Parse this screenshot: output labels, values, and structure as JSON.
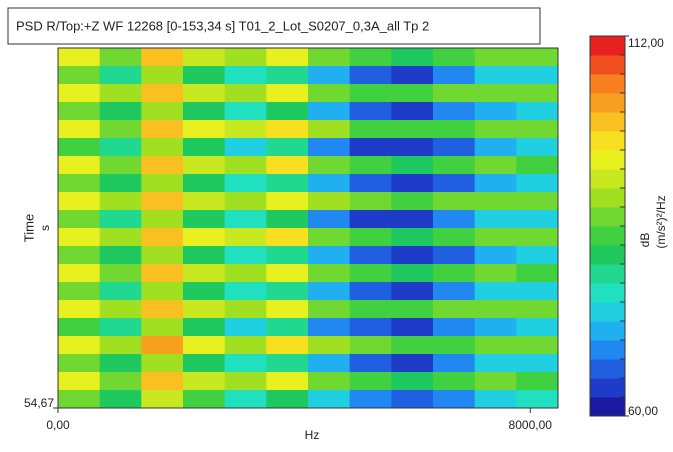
{
  "chart_data": {
    "type": "heatmap",
    "title": "PSD R/Top:+Z WF 12268 [0-153,34 s]  T01_2_Lot_S0207_0,3A_all Tp 2",
    "x_label": "Hz",
    "y_label": "Time",
    "y_unit": "s",
    "colorbar_label": "dB",
    "colorbar_unit": "(m/s²)²/Hz",
    "xlim": [
      0,
      8470
    ],
    "ylim": [
      54.67,
      153.34
    ],
    "xticks": [
      {
        "value": 0,
        "label": "0,00"
      },
      {
        "value": 8000,
        "label": "8000,00"
      }
    ],
    "yticks": [
      {
        "value": 54.67,
        "label": "54,67"
      }
    ],
    "clim": [
      60,
      112
    ],
    "cticks": [
      {
        "value": 112,
        "label": "112,00"
      },
      {
        "value": 60,
        "label": "60,00"
      }
    ],
    "colormap": [
      "#1a1aa0",
      "#1f3cc8",
      "#2060e0",
      "#2088f0",
      "#20b0f0",
      "#20d0e0",
      "#20e0c0",
      "#20d890",
      "#20c860",
      "#40d040",
      "#70d830",
      "#a0e020",
      "#c8e820",
      "#e8f020",
      "#f8e020",
      "#f8c020",
      "#f8a020",
      "#f88020",
      "#f05020",
      "#e82020"
    ],
    "z": [
      [
        94,
        88,
        99,
        92,
        90,
        95,
        88,
        84,
        83,
        85,
        87,
        86
      ],
      [
        86,
        80,
        90,
        82,
        76,
        80,
        72,
        67,
        65,
        69,
        73,
        75
      ],
      [
        95,
        89,
        100,
        93,
        91,
        96,
        87,
        85,
        84,
        86,
        88,
        87
      ],
      [
        87,
        81,
        91,
        83,
        77,
        81,
        71,
        66,
        64,
        68,
        72,
        74
      ],
      [
        96,
        88,
        101,
        94,
        92,
        97,
        89,
        85,
        84,
        85,
        87,
        86
      ],
      [
        85,
        80,
        89,
        81,
        75,
        79,
        70,
        65,
        64,
        67,
        72,
        75
      ],
      [
        94,
        87,
        99,
        92,
        91,
        98,
        88,
        84,
        82,
        84,
        86,
        85
      ],
      [
        86,
        81,
        90,
        83,
        76,
        80,
        71,
        66,
        63,
        67,
        72,
        74
      ],
      [
        95,
        89,
        100,
        93,
        90,
        96,
        89,
        86,
        84,
        86,
        88,
        87
      ],
      [
        87,
        80,
        91,
        82,
        77,
        81,
        70,
        65,
        63,
        68,
        73,
        75
      ],
      [
        96,
        90,
        101,
        94,
        92,
        97,
        88,
        85,
        83,
        85,
        87,
        86
      ],
      [
        86,
        81,
        90,
        82,
        76,
        79,
        71,
        66,
        64,
        67,
        72,
        74
      ],
      [
        95,
        88,
        100,
        92,
        90,
        95,
        87,
        84,
        83,
        85,
        86,
        85
      ],
      [
        87,
        80,
        91,
        83,
        77,
        80,
        72,
        67,
        65,
        69,
        73,
        75
      ],
      [
        94,
        89,
        99,
        93,
        91,
        96,
        88,
        85,
        84,
        86,
        87,
        86
      ],
      [
        85,
        80,
        89,
        81,
        75,
        79,
        70,
        66,
        64,
        68,
        72,
        74
      ],
      [
        96,
        89,
        102,
        94,
        91,
        97,
        89,
        86,
        84,
        85,
        87,
        86
      ],
      [
        86,
        81,
        90,
        82,
        76,
        80,
        71,
        66,
        65,
        68,
        73,
        75
      ],
      [
        95,
        88,
        100,
        93,
        90,
        95,
        88,
        85,
        83,
        85,
        86,
        85
      ],
      [
        87,
        82,
        92,
        84,
        78,
        82,
        73,
        68,
        66,
        70,
        74,
        76
      ]
    ]
  }
}
